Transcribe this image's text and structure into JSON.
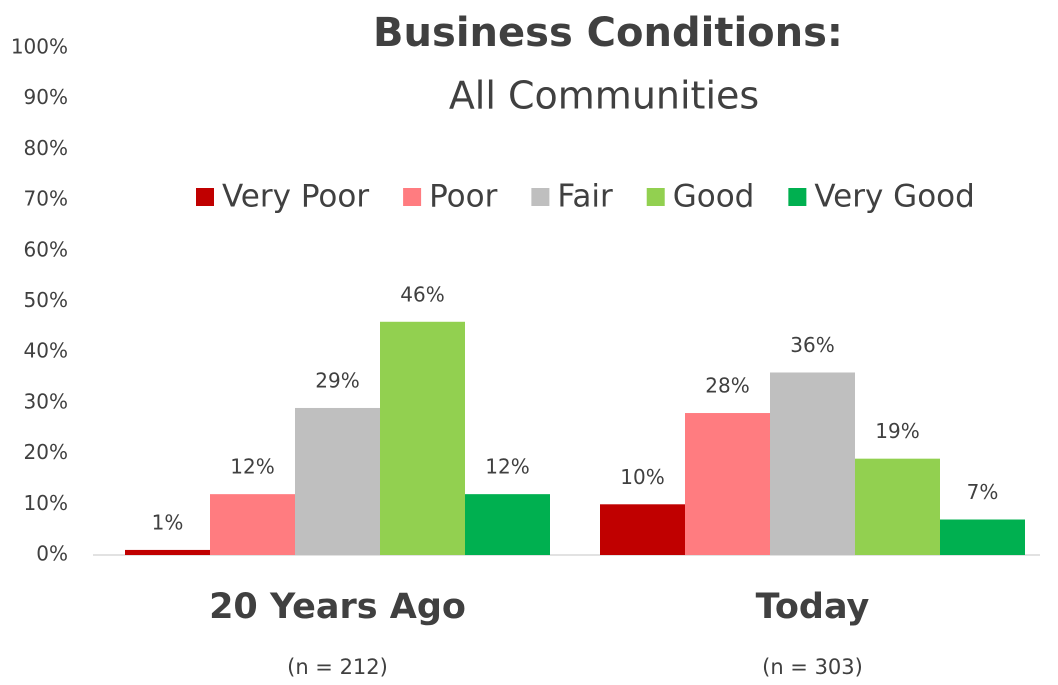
{
  "chart_data": {
    "type": "bar",
    "title": "Business Conditions:",
    "subtitle": "All Communities",
    "categories": [
      "20 Years Ago",
      "Today"
    ],
    "category_notes": [
      "(n = 212)",
      "(n = 303)"
    ],
    "series": [
      {
        "name": "Very Poor",
        "color": "#c00000",
        "values": [
          1,
          10
        ],
        "value_labels": [
          "1%",
          "10%"
        ]
      },
      {
        "name": "Poor",
        "color": "#ff7c80",
        "values": [
          12,
          28
        ],
        "value_labels": [
          "12%",
          "28%"
        ]
      },
      {
        "name": "Fair",
        "color": "#bfbfbf",
        "values": [
          29,
          36
        ],
        "value_labels": [
          "29%",
          "36%"
        ]
      },
      {
        "name": "Good",
        "color": "#92d050",
        "values": [
          46,
          19
        ],
        "value_labels": [
          "46%",
          "19%"
        ]
      },
      {
        "name": "Very Good",
        "color": "#00b050",
        "values": [
          12,
          7
        ],
        "value_labels": [
          "12%",
          "7%"
        ]
      }
    ],
    "ylim": [
      0,
      100
    ],
    "yticks": [
      {
        "value": 0,
        "label": "0%"
      },
      {
        "value": 10,
        "label": "10%"
      },
      {
        "value": 20,
        "label": "20%"
      },
      {
        "value": 30,
        "label": "30%"
      },
      {
        "value": 40,
        "label": "40%"
      },
      {
        "value": 50,
        "label": "50%"
      },
      {
        "value": 60,
        "label": "60%"
      },
      {
        "value": 70,
        "label": "70%"
      },
      {
        "value": 80,
        "label": "80%"
      },
      {
        "value": 90,
        "label": "90%"
      },
      {
        "value": 100,
        "label": "100%"
      }
    ],
    "grid": false,
    "legend": "top"
  }
}
